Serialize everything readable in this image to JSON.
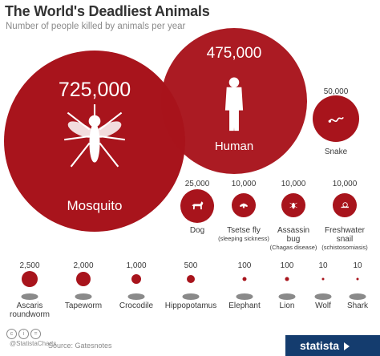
{
  "title": "The World's Deadliest Animals",
  "subtitle": "Number of people killed by animals per year",
  "source": "Source: Gatesnotes",
  "brand": "@StatistaCharts",
  "logo": "statista",
  "colors": {
    "circle": "#a8141c",
    "text_dark": "#3a3a3a",
    "text_light": "#ffffff",
    "logo_bg": "#143c6e"
  },
  "chart_data": {
    "type": "bubble",
    "title": "The World's Deadliest Animals",
    "subtitle": "Number of people killed by animals per year",
    "items": [
      {
        "name": "Mosquito",
        "value": 725000,
        "label": "725,000",
        "icon": "mosquito-icon"
      },
      {
        "name": "Human",
        "value": 475000,
        "label": "475,000",
        "icon": "human-icon"
      },
      {
        "name": "Snake",
        "value": 50000,
        "label": "50,000",
        "icon": "snake-icon"
      },
      {
        "name": "Dog",
        "value": 25000,
        "label": "25,000",
        "icon": "dog-icon"
      },
      {
        "name": "Tsetse fly",
        "sub": "(sleeping sickness)",
        "value": 10000,
        "label": "10,000",
        "icon": "tsetse-fly-icon"
      },
      {
        "name": "Assassin bug",
        "sub": "(Chagas disease)",
        "value": 10000,
        "label": "10,000",
        "icon": "assassin-bug-icon"
      },
      {
        "name": "Freshwater snail",
        "sub": "(schistosomiasis)",
        "value": 10000,
        "label": "10,000",
        "icon": "snail-icon"
      },
      {
        "name": "Ascaris roundworm",
        "value": 2500,
        "label": "2,500",
        "icon": "ascaris-icon"
      },
      {
        "name": "Tapeworm",
        "value": 2000,
        "label": "2,000",
        "icon": "tapeworm-icon"
      },
      {
        "name": "Crocodile",
        "value": 1000,
        "label": "1,000",
        "icon": "crocodile-icon"
      },
      {
        "name": "Hippopotamus",
        "value": 500,
        "label": "500",
        "icon": "hippopotamus-icon"
      },
      {
        "name": "Elephant",
        "value": 100,
        "label": "100",
        "icon": "elephant-icon"
      },
      {
        "name": "Lion",
        "value": 100,
        "label": "100",
        "icon": "lion-icon"
      },
      {
        "name": "Wolf",
        "value": 10,
        "label": "10",
        "icon": "wolf-icon"
      },
      {
        "name": "Shark",
        "value": 10,
        "label": "10",
        "icon": "shark-icon"
      }
    ]
  }
}
